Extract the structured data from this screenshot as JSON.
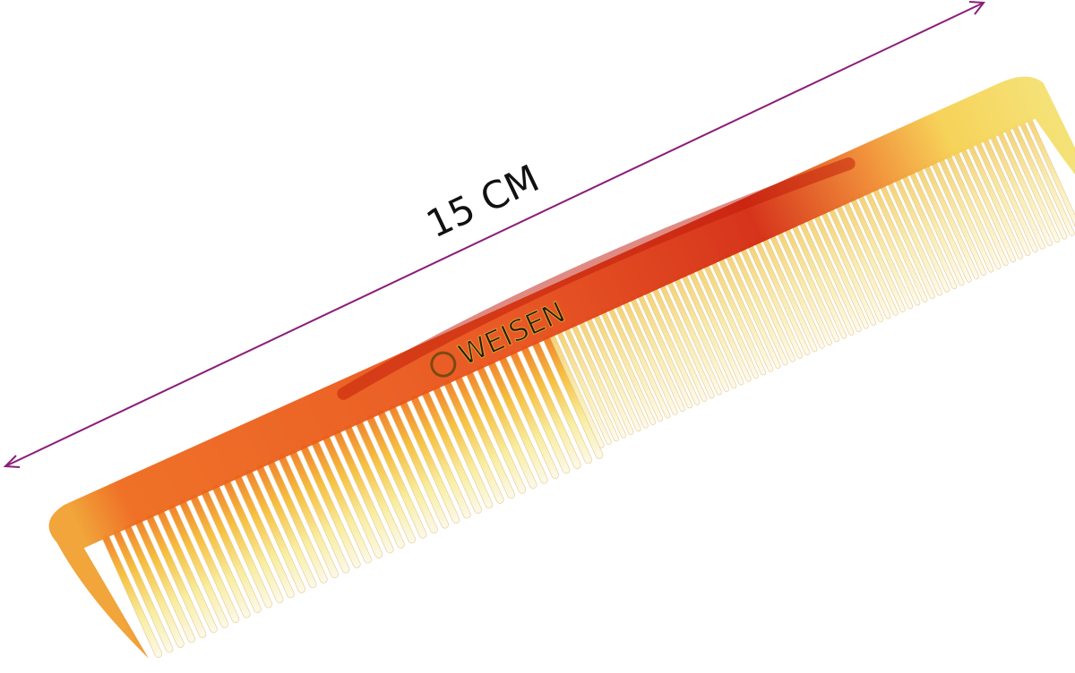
{
  "dimension_label": "15 CM",
  "brand": "WEISEN"
}
